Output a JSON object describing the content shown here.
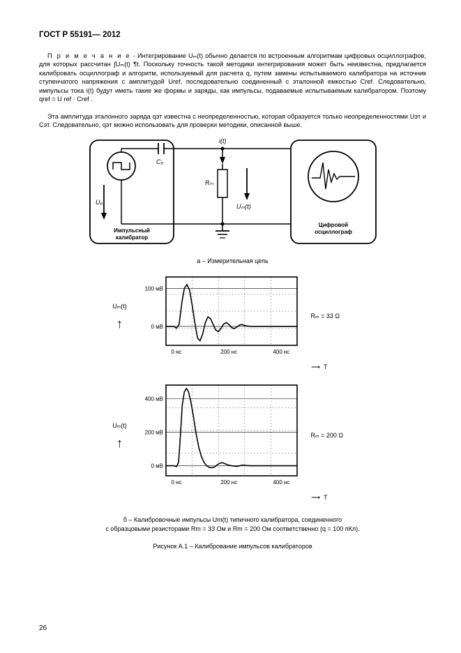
{
  "header": "ГОСТ Р  55191— 2012",
  "note_lead": "П р и м е ч а н и е",
  "note_text": " - Интегрирование Uₘ(t) обычно делается по встроенным алгоритмам цифровых осциллографов, для которых рассчитан ∫Uₘ(t) ¶t. Поскольку точность такой методики интегрирования может быть неизвестна, предлагается калибровать осциллограф и алгоритм, используемый для расчета q, путем замены испытываемого калибратора на источник ступенчатого напряжения с амплитудой Uref, последовательно соединенный с эталонной емкостью Cref. Следовательно, импульсы тока i(t) будут иметь такие же формы и заряды, как импульсы, подаваемые испытываемым калибратором. Поэтому qref = U ref  · Cref .",
  "para_text": "Эта амплитуда эталонного заряда qэт известна с неопределенностью, которая образуется только неопределенностями Uэт и Cэт. Следовательно, qэт можно использовать для проверки методики, описанной выше.",
  "figure_a": {
    "label_calibrator": "Импульсный калибратор",
    "label_scope": "Цифровой осциллограф",
    "u0": "U₀",
    "c0": "C₀",
    "rm": "Rₘ",
    "it": "i(t)",
    "umt": "Uₘ(t)",
    "caption": "a – Измерительная цепь"
  },
  "chart1": {
    "type": "line",
    "ylabel": "Uₘ(t)",
    "y_ticks": [
      0,
      100
    ],
    "y_unit": "мВ",
    "x_ticks": [
      0,
      200,
      400
    ],
    "x_unit": "нс",
    "x_axis_label": "T",
    "right_label": "Rₘ = 33 Ω",
    "grid_color": "#000000",
    "bg_color": "#ffffff",
    "line_color": "#000000",
    "xlim": [
      -40,
      460
    ],
    "ylim": [
      -50,
      130
    ],
    "points": [
      [
        -40,
        0
      ],
      [
        -10,
        0
      ],
      [
        0,
        -5
      ],
      [
        10,
        5
      ],
      [
        20,
        60
      ],
      [
        30,
        100
      ],
      [
        40,
        110
      ],
      [
        50,
        95
      ],
      [
        60,
        55
      ],
      [
        70,
        10
      ],
      [
        80,
        -30
      ],
      [
        90,
        -38
      ],
      [
        100,
        -20
      ],
      [
        110,
        10
      ],
      [
        120,
        25
      ],
      [
        130,
        20
      ],
      [
        140,
        5
      ],
      [
        150,
        -10
      ],
      [
        160,
        -14
      ],
      [
        170,
        -5
      ],
      [
        180,
        6
      ],
      [
        190,
        10
      ],
      [
        200,
        5
      ],
      [
        210,
        -3
      ],
      [
        220,
        -6
      ],
      [
        230,
        -2
      ],
      [
        240,
        3
      ],
      [
        250,
        5
      ],
      [
        260,
        2
      ],
      [
        280,
        0
      ],
      [
        320,
        0
      ],
      [
        400,
        0
      ],
      [
        460,
        0
      ]
    ]
  },
  "chart2": {
    "type": "line",
    "ylabel": "Uₘ(t)",
    "y_ticks": [
      0,
      200,
      400
    ],
    "y_unit": "мВ",
    "x_ticks": [
      0,
      200,
      400
    ],
    "x_unit": "нс",
    "x_axis_label": "T",
    "right_label": "Rₘ = 200 Ω",
    "grid_color": "#000000",
    "bg_color": "#ffffff",
    "line_color": "#000000",
    "xlim": [
      -40,
      460
    ],
    "ylim": [
      -60,
      480
    ],
    "points": [
      [
        -40,
        0
      ],
      [
        -10,
        0
      ],
      [
        0,
        -5
      ],
      [
        8,
        20
      ],
      [
        15,
        180
      ],
      [
        22,
        360
      ],
      [
        30,
        440
      ],
      [
        38,
        460
      ],
      [
        46,
        440
      ],
      [
        55,
        380
      ],
      [
        65,
        290
      ],
      [
        75,
        190
      ],
      [
        85,
        110
      ],
      [
        95,
        55
      ],
      [
        105,
        20
      ],
      [
        115,
        0
      ],
      [
        125,
        -10
      ],
      [
        135,
        -12
      ],
      [
        145,
        -8
      ],
      [
        155,
        5
      ],
      [
        165,
        15
      ],
      [
        175,
        18
      ],
      [
        185,
        12
      ],
      [
        195,
        5
      ],
      [
        210,
        0
      ],
      [
        230,
        -4
      ],
      [
        250,
        3
      ],
      [
        280,
        0
      ],
      [
        320,
        0
      ],
      [
        400,
        0
      ],
      [
        460,
        0
      ]
    ]
  },
  "caption_b_line1": "б – Калибровочные импульсы Um(t) типичного калибратора, соединенного",
  "caption_b_line2": "с образцовыми резисторами Rm = 33 Ом и Rm = 200 Ом соответственно (q = 100 пКл).",
  "fig_title": "Рисунок A.1 – Калибрование импульсов калибраторов",
  "page_number": "26"
}
